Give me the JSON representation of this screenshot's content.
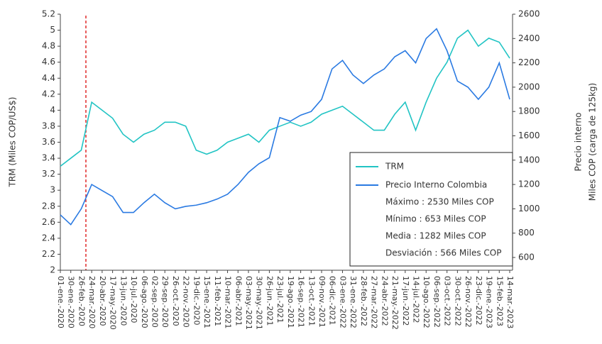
{
  "chart_data": {
    "type": "line",
    "y_label": "TRM (Miles COP/US$)",
    "y2_label": [
      "Precio interno",
      "Miles COP (carga de 125kg)"
    ],
    "categories": [
      "01-ene.-2020",
      "30-ene.-2020",
      "26-feb.-2020",
      "24-mar.-2020",
      "20-abr.-2020",
      "17-may.-2020",
      "13-jun.-2020",
      "10-jul.-2020",
      "06-ago.-2020",
      "02-sep.-2020",
      "29-sep.-2020",
      "26-oct.-2020",
      "22-nov.-2020",
      "19-dic.-2020",
      "15-ene.-2021",
      "11-feb.-2021",
      "10-mar.-2021",
      "06-abr.-2021",
      "03-may.-2021",
      "30-may.-2021",
      "26-jun.-2021",
      "23-jul.-2021",
      "19-ago.-2021",
      "16-sep.-2021",
      "13-oct.-2021",
      "09-nov.-2021",
      "06-dic.-2021",
      "03-ene.-2022",
      "31-ene.-2022",
      "28-feb.-2022",
      "27-mar.-2022",
      "24-abr.-2022",
      "21-may.-2022",
      "17-jun.-2022",
      "14-jul.-2022",
      "10-ago.-2022",
      "06-sep.-2022",
      "03-oct.-2022",
      "30-oct.-2022",
      "26-nov.-2022",
      "23-dic.-2022",
      "19-ene.-2023",
      "15-feb.-2023",
      "14-mar.-2023"
    ],
    "series": [
      {
        "name": "TRM",
        "color": "#22c4c4",
        "values": [
          3.3,
          3.4,
          3.5,
          4.1,
          4.0,
          3.9,
          3.7,
          3.6,
          3.7,
          3.75,
          3.85,
          3.85,
          3.8,
          3.5,
          3.45,
          3.5,
          3.6,
          3.65,
          3.7,
          3.6,
          3.75,
          3.8,
          3.85,
          3.8,
          3.85,
          3.95,
          4.0,
          4.05,
          3.95,
          3.85,
          3.75,
          3.75,
          3.95,
          4.1,
          3.75,
          4.1,
          4.4,
          4.6,
          4.9,
          5.0,
          4.8,
          4.9,
          4.85,
          4.65
        ]
      },
      {
        "name": "Precio Interno Colombia",
        "color": "#2a7ae2",
        "axis": "y2",
        "values": [
          950,
          870,
          1000,
          1200,
          1150,
          1100,
          970,
          970,
          1050,
          1120,
          1050,
          1000,
          1020,
          1030,
          1050,
          1080,
          1120,
          1200,
          1300,
          1370,
          1420,
          1750,
          1720,
          1770,
          1800,
          1900,
          2150,
          2220,
          2100,
          2030,
          2100,
          2150,
          2250,
          2300,
          2200,
          2400,
          2480,
          2300,
          2050,
          2000,
          1900,
          2000,
          2200,
          1900
        ]
      }
    ],
    "legend_notes": [
      "Máximo : 2530 Miles COP",
      "Mínimo : 653 Miles COP",
      "Media : 1282 Miles COP",
      "Desviación : 566 Miles COP"
    ],
    "ylim": [
      2,
      5.2
    ],
    "yticks": [
      2,
      2.2,
      2.4,
      2.6,
      2.8,
      3,
      3.2,
      3.4,
      3.6,
      3.8,
      4,
      4.2,
      4.4,
      4.6,
      4.8,
      5,
      5.2
    ],
    "y2lim": [
      495,
      2600
    ],
    "y2ticks": [
      600,
      800,
      1000,
      1200,
      1400,
      1600,
      1800,
      2000,
      2200,
      2400,
      2600
    ],
    "legend": "lower right"
  }
}
